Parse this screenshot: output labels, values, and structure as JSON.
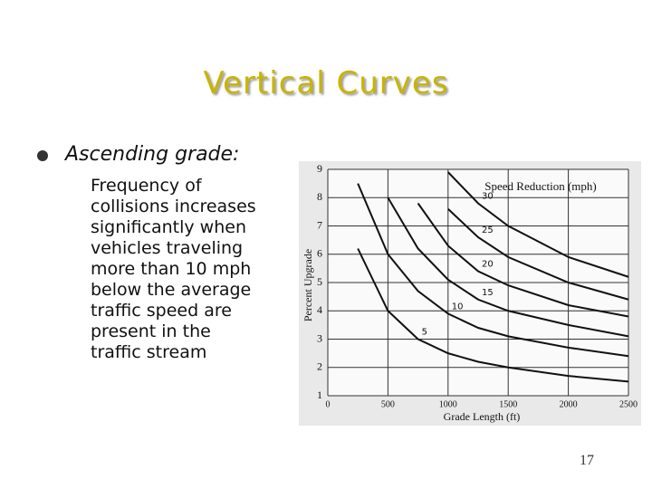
{
  "title": "Vertical Curves",
  "bullet": {
    "heading": "Ascending grade:",
    "lines": [
      "Frequency of",
      "collisions increases",
      "significantly when",
      "vehicles traveling",
      "more than 10 mph",
      "below the average",
      "traffic speed are",
      "present in the",
      "traffic stream"
    ]
  },
  "page_number": "17",
  "chart_data": {
    "type": "line",
    "annotation": "Speed Reduction (mph)",
    "xlabel": "Grade Length (ft)",
    "ylabel": "Percent Upgrade",
    "x": [
      250,
      500,
      750,
      1000,
      1250,
      1500,
      2000,
      2500
    ],
    "series": [
      {
        "name": "5",
        "color": "#111111",
        "values": [
          6.2,
          4.0,
          3.0,
          2.5,
          2.2,
          2.0,
          1.7,
          1.5
        ]
      },
      {
        "name": "10",
        "color": "#111111",
        "values": [
          8.5,
          6.0,
          4.7,
          3.9,
          3.4,
          3.1,
          2.7,
          2.4
        ]
      },
      {
        "name": "15",
        "color": "#111111",
        "values": [
          null,
          8.0,
          6.2,
          5.1,
          4.4,
          4.0,
          3.5,
          3.1
        ]
      },
      {
        "name": "20",
        "color": "#111111",
        "values": [
          null,
          null,
          7.8,
          6.3,
          5.4,
          4.9,
          4.2,
          3.8
        ]
      },
      {
        "name": "25",
        "color": "#111111",
        "values": [
          null,
          null,
          null,
          7.6,
          6.6,
          5.9,
          5.0,
          4.4
        ]
      },
      {
        "name": "30",
        "color": "#111111",
        "values": [
          null,
          null,
          null,
          8.9,
          7.8,
          7.0,
          5.9,
          5.2
        ]
      }
    ],
    "xlim": [
      0,
      2500
    ],
    "ylim": [
      1,
      9
    ],
    "xticks": [
      0,
      500,
      1000,
      1500,
      2000,
      2500
    ],
    "yticks": [
      1,
      2,
      3,
      4,
      5,
      6,
      7,
      8,
      9
    ],
    "grid": true
  }
}
